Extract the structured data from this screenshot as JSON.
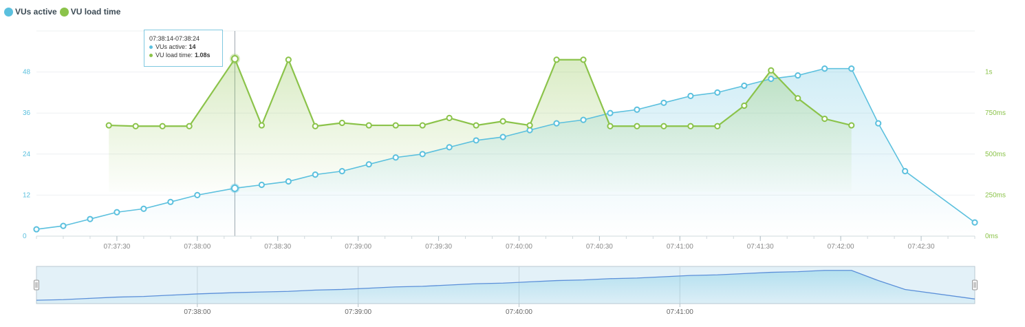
{
  "legend": {
    "items": [
      {
        "label": "VUs active",
        "color": "#5bc0de"
      },
      {
        "label": "VU load time",
        "color": "#8bc34a"
      }
    ]
  },
  "tooltip": {
    "time_range": "07:38:14-07:38:24",
    "rows": [
      {
        "label": "VUs active:",
        "value": "14",
        "color": "#5bc0de"
      },
      {
        "label": "VU load time:",
        "value": "1.08s",
        "color": "#8bc34a"
      }
    ]
  },
  "chart_data": {
    "type": "line",
    "x_axis": {
      "start": "07:37:00",
      "end": "07:42:50",
      "tick_labels": [
        "07:37:30",
        "07:38:00",
        "07:38:30",
        "07:39:00",
        "07:39:30",
        "07:40:00",
        "07:40:30",
        "07:41:00",
        "07:41:30",
        "07:42:00",
        "07:42:30"
      ]
    },
    "y_left": {
      "ticks": [
        "0",
        "12",
        "24",
        "36",
        "48"
      ],
      "ylim": [
        0,
        60
      ]
    },
    "y_right": {
      "ticks": [
        "0ms",
        "250ms",
        "500ms",
        "750ms",
        "1s"
      ],
      "ylim_ms": [
        0,
        1250
      ]
    },
    "hover_time": "07:38:14",
    "series": [
      {
        "name": "VUs active",
        "axis": "left",
        "color": "#5bc0de",
        "points": [
          [
            "07:37:00",
            2
          ],
          [
            "07:37:10",
            3
          ],
          [
            "07:37:20",
            5
          ],
          [
            "07:37:30",
            7
          ],
          [
            "07:37:40",
            8
          ],
          [
            "07:37:50",
            10
          ],
          [
            "07:38:00",
            12
          ],
          [
            "07:38:14",
            14
          ],
          [
            "07:38:24",
            15
          ],
          [
            "07:38:34",
            16
          ],
          [
            "07:38:44",
            18
          ],
          [
            "07:38:54",
            19
          ],
          [
            "07:39:04",
            21
          ],
          [
            "07:39:14",
            23
          ],
          [
            "07:39:24",
            24
          ],
          [
            "07:39:34",
            26
          ],
          [
            "07:39:44",
            28
          ],
          [
            "07:39:54",
            29
          ],
          [
            "07:40:04",
            31
          ],
          [
            "07:40:14",
            33
          ],
          [
            "07:40:24",
            34
          ],
          [
            "07:40:34",
            36
          ],
          [
            "07:40:44",
            37
          ],
          [
            "07:40:54",
            39
          ],
          [
            "07:41:04",
            41
          ],
          [
            "07:41:14",
            42
          ],
          [
            "07:41:24",
            44
          ],
          [
            "07:41:34",
            46
          ],
          [
            "07:41:44",
            47
          ],
          [
            "07:41:54",
            49
          ],
          [
            "07:42:04",
            49
          ],
          [
            "07:42:14",
            33
          ],
          [
            "07:42:24",
            19
          ],
          [
            "07:42:50",
            4
          ]
        ]
      },
      {
        "name": "VU load time",
        "axis": "right",
        "color": "#8bc34a",
        "points_ms": [
          [
            "07:37:27",
            675
          ],
          [
            "07:37:37",
            670
          ],
          [
            "07:37:47",
            670
          ],
          [
            "07:37:57",
            670
          ],
          [
            "07:38:14",
            1080
          ],
          [
            "07:38:24",
            675
          ],
          [
            "07:38:34",
            1075
          ],
          [
            "07:38:44",
            670
          ],
          [
            "07:38:54",
            690
          ],
          [
            "07:39:04",
            675
          ],
          [
            "07:39:14",
            675
          ],
          [
            "07:39:24",
            675
          ],
          [
            "07:39:34",
            720
          ],
          [
            "07:39:44",
            675
          ],
          [
            "07:39:54",
            700
          ],
          [
            "07:40:04",
            675
          ],
          [
            "07:40:14",
            1075
          ],
          [
            "07:40:24",
            1075
          ],
          [
            "07:40:34",
            670
          ],
          [
            "07:40:44",
            670
          ],
          [
            "07:40:54",
            670
          ],
          [
            "07:41:04",
            670
          ],
          [
            "07:41:14",
            670
          ],
          [
            "07:41:24",
            795
          ],
          [
            "07:41:34",
            1010
          ],
          [
            "07:41:44",
            840
          ],
          [
            "07:41:54",
            715
          ],
          [
            "07:42:04",
            675
          ]
        ]
      }
    ],
    "navigator": {
      "tick_labels": [
        "07:38:00",
        "07:39:00",
        "07:40:00",
        "07:41:00"
      ]
    }
  }
}
